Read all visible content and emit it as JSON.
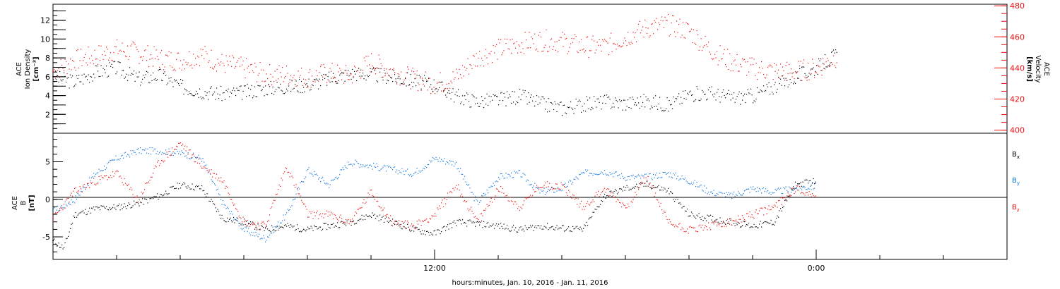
{
  "colors": {
    "black": "#000000",
    "red": "#ee1111",
    "blue": "#1177dd"
  },
  "xaxis": {
    "label": "hours:minutes, Jan. 10, 2016 - Jan. 11, 2016",
    "range_hours": [
      0,
      45
    ],
    "major_ticks": [
      {
        "hour": 18,
        "label": "12:00"
      },
      {
        "hour": 36,
        "label": "0:00"
      }
    ]
  },
  "chart_data": [
    {
      "type": "scatter",
      "panel": "top",
      "ylabel_left": [
        "ACE",
        "Ion Density",
        "[cm⁻³]"
      ],
      "ylabel_right": [
        "ACE",
        "Velocity",
        "[km/s]"
      ],
      "ylim_left": [
        0,
        13.7
      ],
      "ylim_right": [
        398,
        481
      ],
      "yticks_left": [
        2,
        4,
        6,
        8,
        10,
        12
      ],
      "yticks_right": [
        400,
        420,
        440,
        460,
        480
      ],
      "series": [
        {
          "axis": "left",
          "color": "black",
          "points": [
            [
              0,
              6
            ],
            [
              1,
              5.5
            ],
            [
              2,
              6.5
            ],
            [
              3,
              7
            ],
            [
              4,
              5.8
            ],
            [
              5,
              6.2
            ],
            [
              6,
              5
            ],
            [
              7,
              4.5
            ],
            [
              8,
              4.2
            ],
            [
              9,
              4.4
            ],
            [
              10,
              4.8
            ],
            [
              11,
              5
            ],
            [
              12,
              5.2
            ],
            [
              13,
              5.8
            ],
            [
              14,
              6.4
            ],
            [
              15,
              6.3
            ],
            [
              16,
              6
            ],
            [
              17,
              5.6
            ],
            [
              18,
              5.2
            ],
            [
              19,
              4
            ],
            [
              20,
              3.4
            ],
            [
              21,
              3.6
            ],
            [
              22,
              4
            ],
            [
              23,
              3.2
            ],
            [
              24,
              2.7
            ],
            [
              25,
              3.1
            ],
            [
              26,
              3.4
            ],
            [
              27,
              3.2
            ],
            [
              28,
              3.5
            ],
            [
              29,
              3
            ],
            [
              30,
              4.2
            ],
            [
              31,
              4.3
            ],
            [
              32,
              3.8
            ],
            [
              33,
              4
            ],
            [
              34,
              5
            ],
            [
              35,
              6
            ],
            [
              36,
              7
            ],
            [
              37,
              8.5
            ]
          ]
        },
        {
          "axis": "right",
          "color": "red",
          "points": [
            [
              0,
              438
            ],
            [
              1,
              445
            ],
            [
              2,
              448
            ],
            [
              3,
              452
            ],
            [
              4,
              450
            ],
            [
              5,
              446
            ],
            [
              6,
              445
            ],
            [
              7,
              449
            ],
            [
              8,
              443
            ],
            [
              9,
              440
            ],
            [
              10,
              436
            ],
            [
              11,
              436
            ],
            [
              12,
              434
            ],
            [
              13,
              437
            ],
            [
              14,
              435
            ],
            [
              15,
              444
            ],
            [
              16,
              438
            ],
            [
              17,
              433
            ],
            [
              18,
              430
            ],
            [
              19,
              434
            ],
            [
              20,
              447
            ],
            [
              21,
              452
            ],
            [
              22,
              456
            ],
            [
              23,
              458
            ],
            [
              24,
              457
            ],
            [
              25,
              454
            ],
            [
              26,
              454
            ],
            [
              27,
              460
            ],
            [
              28,
              466
            ],
            [
              29,
              468
            ],
            [
              30,
              464
            ],
            [
              31,
              452
            ],
            [
              32,
              444
            ],
            [
              33,
              440
            ],
            [
              34,
              438
            ],
            [
              35,
              438
            ],
            [
              36,
              440
            ],
            [
              37,
              448
            ]
          ]
        }
      ]
    },
    {
      "type": "scatter",
      "panel": "bottom",
      "ylabel_left": [
        "ACE",
        "B",
        "[nT]"
      ],
      "ylim": [
        -8,
        8.8
      ],
      "yticks": [
        -5,
        0,
        5
      ],
      "legend": [
        "Bx",
        "By",
        "Bz"
      ],
      "series": [
        {
          "name": "Bx",
          "color": "black",
          "points": [
            [
              0,
              -5.5
            ],
            [
              0.5,
              -6.5
            ],
            [
              1,
              -2
            ],
            [
              2,
              -1.2
            ],
            [
              3,
              -1
            ],
            [
              4,
              -0.5
            ],
            [
              5,
              0.5
            ],
            [
              6,
              2
            ],
            [
              7,
              1.5
            ],
            [
              8,
              -2.5
            ],
            [
              9,
              -3
            ],
            [
              10,
              -4
            ],
            [
              11,
              -3.5
            ],
            [
              12,
              -4
            ],
            [
              13,
              -3.5
            ],
            [
              14,
              -3
            ],
            [
              15,
              -2
            ],
            [
              16,
              -3
            ],
            [
              17,
              -4
            ],
            [
              18,
              -4.5
            ],
            [
              19,
              -3
            ],
            [
              20,
              -3.2
            ],
            [
              21,
              -3.5
            ],
            [
              22,
              -4
            ],
            [
              23,
              -3.5
            ],
            [
              24,
              -3.8
            ],
            [
              25,
              -4
            ],
            [
              26,
              0.5
            ],
            [
              27,
              1.5
            ],
            [
              28,
              2
            ],
            [
              29,
              1.2
            ],
            [
              30,
              -2
            ],
            [
              31,
              -2.5
            ],
            [
              32,
              -3
            ],
            [
              33,
              -3.5
            ],
            [
              34,
              -3
            ],
            [
              35,
              2
            ],
            [
              36,
              2.5
            ]
          ]
        },
        {
          "name": "By",
          "color": "blue",
          "points": [
            [
              0,
              -1.5
            ],
            [
              1,
              0
            ],
            [
              2,
              3.5
            ],
            [
              3,
              5.5
            ],
            [
              4,
              6.5
            ],
            [
              5,
              6.5
            ],
            [
              6,
              6.2
            ],
            [
              7,
              5.5
            ],
            [
              8,
              -0.5
            ],
            [
              9,
              -4
            ],
            [
              10,
              -5.2
            ],
            [
              11,
              -2
            ],
            [
              12,
              4
            ],
            [
              13,
              2
            ],
            [
              14,
              5
            ],
            [
              15,
              4.5
            ],
            [
              16,
              4
            ],
            [
              17,
              3.5
            ],
            [
              18,
              5.5
            ],
            [
              19,
              4.8
            ],
            [
              20,
              -0.5
            ],
            [
              21,
              3
            ],
            [
              22,
              3.5
            ],
            [
              23,
              1
            ],
            [
              24,
              1.5
            ],
            [
              25,
              3.5
            ],
            [
              26,
              3.8
            ],
            [
              27,
              3
            ],
            [
              28,
              3
            ],
            [
              29,
              3.5
            ],
            [
              30,
              2.5
            ],
            [
              31,
              1
            ],
            [
              32,
              0.5
            ],
            [
              33,
              1.5
            ],
            [
              34,
              1
            ],
            [
              35,
              1.5
            ],
            [
              36,
              1.8
            ]
          ]
        },
        {
          "name": "Bz",
          "color": "red",
          "points": [
            [
              0,
              -2.5
            ],
            [
              1,
              1
            ],
            [
              2,
              2.5
            ],
            [
              3,
              3.5
            ],
            [
              4,
              0
            ],
            [
              5,
              5
            ],
            [
              6,
              7.5
            ],
            [
              7,
              4.5
            ],
            [
              8,
              2.5
            ],
            [
              9,
              -3
            ],
            [
              10,
              -3.5
            ],
            [
              11,
              4.5
            ],
            [
              12,
              -2
            ],
            [
              13,
              -2
            ],
            [
              14,
              -3
            ],
            [
              15,
              1
            ],
            [
              16,
              -3
            ],
            [
              17,
              -3.5
            ],
            [
              18,
              -2
            ],
            [
              19,
              2
            ],
            [
              20,
              -3
            ],
            [
              21,
              1.5
            ],
            [
              22,
              -1
            ],
            [
              23,
              2
            ],
            [
              24,
              1.8
            ],
            [
              25,
              -1
            ],
            [
              26,
              1.5
            ],
            [
              27,
              -1
            ],
            [
              28,
              3
            ],
            [
              29,
              -3
            ],
            [
              30,
              -4
            ],
            [
              31,
              -3.5
            ],
            [
              32,
              -3
            ],
            [
              33,
              -2
            ],
            [
              34,
              -1
            ],
            [
              35,
              1.5
            ],
            [
              36,
              0.5
            ]
          ]
        }
      ]
    }
  ]
}
